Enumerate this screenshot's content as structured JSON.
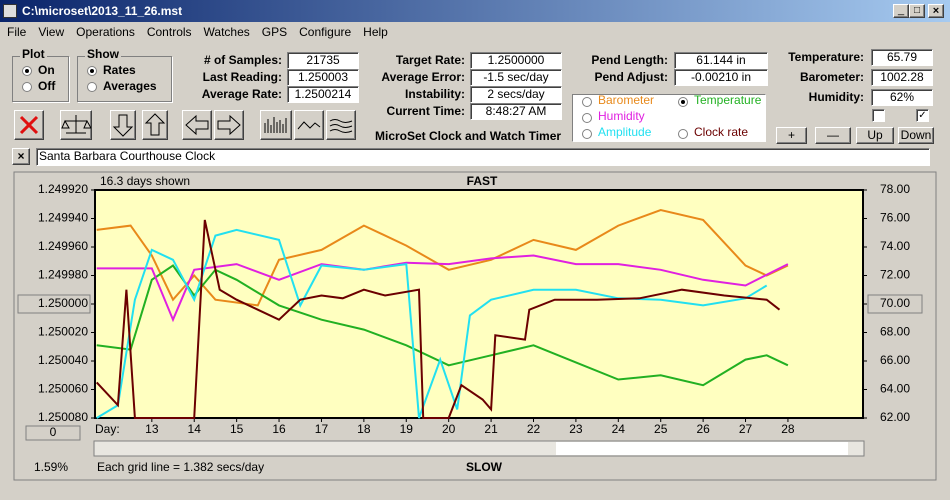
{
  "window": {
    "title": "C:\\microset\\2013_11_26.mst"
  },
  "menu": [
    "File",
    "View",
    "Operations",
    "Controls",
    "Watches",
    "GPS",
    "Configure",
    "Help"
  ],
  "plot": {
    "title": "Plot",
    "options": [
      "On",
      "Off"
    ]
  },
  "show": {
    "title": "Show",
    "options": [
      "Rates",
      "Averages"
    ]
  },
  "fields": [
    [
      {
        "label": "# of Samples:",
        "value": "21735"
      },
      {
        "label": "Last Reading:",
        "value": "1.250003"
      },
      {
        "label": "Average Rate:",
        "value": "1.2500214"
      }
    ],
    [
      {
        "label": "Target Rate:",
        "value": "1.2500000"
      },
      {
        "label": "Average Error:",
        "value": "-1.5 sec/day"
      },
      {
        "label": "Instability:",
        "value": "2 secs/day"
      },
      {
        "label": "Current Time:",
        "value": "8:48:27 AM"
      }
    ],
    [
      {
        "label": "Pend Length:",
        "value": "61.144 in"
      },
      {
        "label": "Pend Adjust:",
        "value": "-0.00210 in"
      }
    ],
    [
      {
        "label": "Temperature:",
        "value": "65.79"
      },
      {
        "label": "Barometer:",
        "value": "1002.28"
      },
      {
        "label": "Humidity:",
        "value": "62%"
      }
    ]
  ],
  "app_title": "MicroSet Clock and Watch Timer",
  "buttons": [
    "+",
    "—",
    "Up",
    "Down"
  ],
  "watch_name": "Santa Barbara Courthouse Clock",
  "chart_data": {
    "type": "line",
    "days_shown": "16.3 days shown",
    "top_label": "FAST",
    "bottom_label": "SLOW",
    "x_label": "Day:",
    "grid_note": "Each grid line = 1.382 secs/day",
    "percent": "1.59%",
    "scroll_value": "0",
    "xlim": [
      11.66,
      29.77
    ],
    "xticks": [
      13,
      14,
      15,
      16,
      17,
      18,
      19,
      20,
      21,
      22,
      23,
      24,
      25,
      26,
      27,
      28
    ],
    "ylim": [
      1.25008,
      1.24992
    ],
    "yticks": [
      {
        "value": 1.24992,
        "label": "1.249920"
      },
      {
        "value": 1.24994,
        "label": "1.249940"
      },
      {
        "value": 1.24996,
        "label": "1.249960"
      },
      {
        "value": 1.24998,
        "label": "1.249980"
      },
      {
        "value": 1.25,
        "label": "1.250000"
      },
      {
        "value": 1.25002,
        "label": "1.250020"
      },
      {
        "value": 1.25004,
        "label": "1.250040"
      },
      {
        "value": 1.25006,
        "label": "1.250060"
      },
      {
        "value": 1.25008,
        "label": "1.250080"
      }
    ],
    "y2lim": [
      62,
      78
    ],
    "y2ticks": [
      {
        "value": 78,
        "label": "78.00"
      },
      {
        "value": 76,
        "label": "76.00"
      },
      {
        "value": 74,
        "label": "74.00"
      },
      {
        "value": 72,
        "label": "72.00"
      },
      {
        "value": 70,
        "label": "70.00"
      },
      {
        "value": 68,
        "label": "68.00"
      },
      {
        "value": 66,
        "label": "66.00"
      },
      {
        "value": 64,
        "label": "64.00"
      },
      {
        "value": 62,
        "label": "62.00"
      }
    ],
    "selected": "Temperature",
    "series": [
      {
        "name": "Barometer",
        "color": "#e8891a",
        "axis": "y2",
        "x": [
          11.7,
          12.5,
          13,
          13.5,
          14,
          14.5,
          15.5,
          16,
          17,
          18,
          19,
          20,
          21,
          22,
          23,
          24,
          25,
          26,
          27,
          27.5,
          28
        ],
        "values": [
          75.2,
          75.5,
          73.4,
          70.3,
          72,
          70.3,
          69.9,
          73.1,
          73.8,
          75.5,
          74.1,
          72.4,
          73.1,
          74.5,
          73.8,
          75.5,
          76.6,
          75.9,
          72.7,
          72,
          72.7
        ]
      },
      {
        "name": "Temperature",
        "color": "#22b022",
        "axis": "y2",
        "x": [
          11.7,
          12.5,
          13,
          13.5,
          14,
          14.5,
          15,
          16,
          17,
          18,
          19,
          20,
          21,
          22,
          23,
          24,
          25,
          26,
          27,
          27.5,
          28
        ],
        "values": [
          67.1,
          66.8,
          71.7,
          72.7,
          70.6,
          72.4,
          71.7,
          69.9,
          68.9,
          68.2,
          67.1,
          65.7,
          66.4,
          67.1,
          65.9,
          64.7,
          65,
          64.3,
          66.1,
          66.4,
          65.7
        ]
      },
      {
        "name": "Humidity",
        "color": "#e020e0",
        "axis": "y2",
        "x": [
          11.7,
          13,
          13.5,
          14,
          15,
          16,
          17,
          18,
          19,
          20,
          21,
          22,
          23,
          24,
          25,
          26,
          27,
          28
        ],
        "values": [
          72.5,
          72.5,
          68.9,
          72.4,
          72.8,
          71.7,
          72.8,
          72.4,
          72.9,
          72.8,
          73.2,
          73.4,
          72.8,
          72.8,
          72.4,
          71.7,
          71.3,
          72.8
        ]
      },
      {
        "name": "Amplitude",
        "color": "#22e0f0",
        "axis": "y2",
        "x": [
          11.7,
          12.2,
          12.6,
          13,
          13.5,
          14,
          14.5,
          15,
          16,
          16.5,
          17,
          18,
          19,
          19.3,
          19.8,
          20.2,
          20.5,
          21,
          22,
          23,
          24,
          25,
          26,
          27,
          27.5
        ],
        "values": [
          62,
          62.9,
          70.3,
          73.8,
          73.1,
          70.3,
          74.8,
          75.2,
          74.5,
          69.9,
          72.7,
          72.4,
          72.8,
          62,
          66.1,
          62.6,
          69.2,
          70.3,
          71,
          71,
          70.4,
          70.3,
          69.9,
          70.4,
          71.3
        ]
      },
      {
        "name": "Clock rate",
        "color": "#6b0000",
        "axis": "y",
        "x": [
          11.7,
          12.2,
          12.4,
          12.6,
          14,
          14.25,
          14.4,
          14.6,
          15,
          15.5,
          16,
          16.5,
          17,
          17.5,
          18,
          18.5,
          19.3,
          19.4,
          20,
          20.3,
          20.8,
          21,
          21.1,
          21.8,
          21.9,
          22.5,
          23.5,
          24.5,
          25.5,
          26.5,
          27.5,
          27.8
        ],
        "values": [
          1.250055,
          1.250071,
          1.24999,
          1.25008,
          1.25008,
          1.249941,
          1.249962,
          1.24999,
          1.249997,
          1.250004,
          1.250011,
          1.249997,
          1.249994,
          1.249996,
          1.24999,
          1.249994,
          1.24999,
          1.25008,
          1.25008,
          1.250057,
          1.250067,
          1.250074,
          1.250022,
          1.250025,
          1.250004,
          1.249997,
          1.249997,
          1.249996,
          1.24999,
          1.249994,
          1.249997,
          1.250004
        ]
      }
    ]
  }
}
